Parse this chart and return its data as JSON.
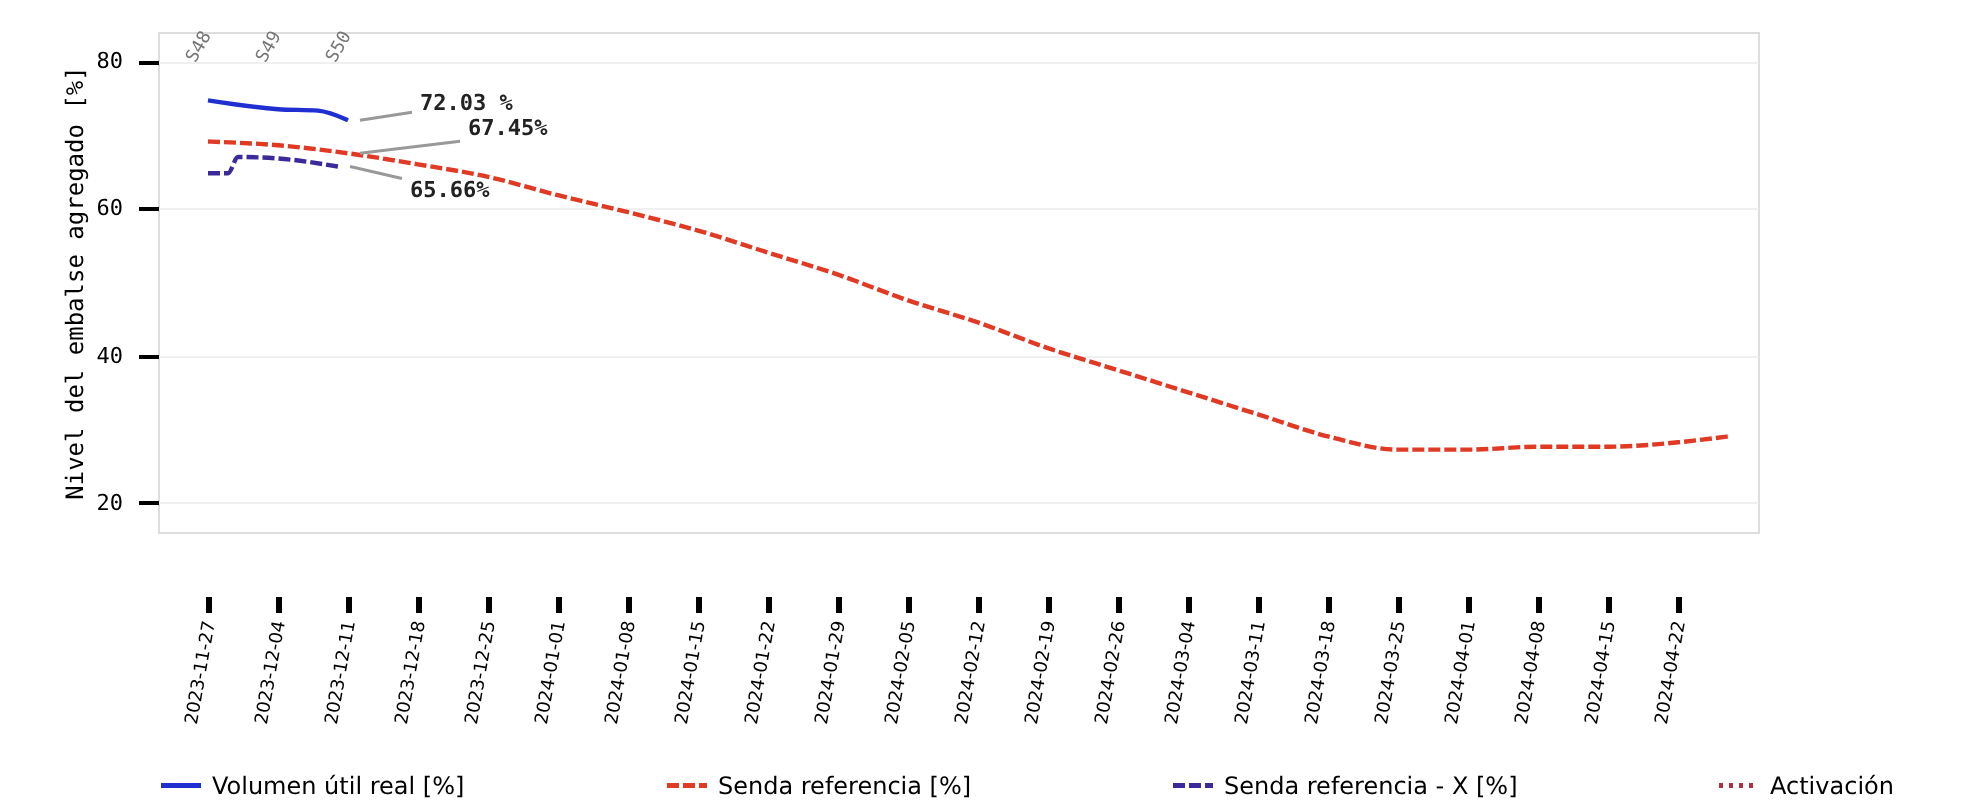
{
  "chart_data": {
    "type": "line",
    "ylabel": "Nivel del embalse agregado [%]",
    "xlim": [
      "2023-11-22",
      "2024-04-30"
    ],
    "xticks": [
      "2023-11-27",
      "2023-12-04",
      "2023-12-11",
      "2023-12-18",
      "2023-12-25",
      "2024-01-01",
      "2024-01-08",
      "2024-01-15",
      "2024-01-22",
      "2024-01-29",
      "2024-02-05",
      "2024-02-12",
      "2024-02-19",
      "2024-02-26",
      "2024-03-04",
      "2024-03-11",
      "2024-03-18",
      "2024-03-25",
      "2024-04-01",
      "2024-04-08",
      "2024-04-15",
      "2024-04-22"
    ],
    "ylim": [
      16,
      84
    ],
    "yticks": [
      20,
      40,
      60,
      80
    ],
    "grid": "y",
    "legend": "bottom",
    "series": [
      {
        "name": "Volumen útil real [%]",
        "color": "#1f2fd0",
        "line_style": "solid",
        "x": [
          "2023-11-27",
          "2023-12-04",
          "2023-12-08",
          "2023-12-11"
        ],
        "values": [
          74.7,
          73.5,
          73.3,
          72.0
        ]
      },
      {
        "name": "Senda referencia [%]",
        "color": "#e03a24",
        "line_style": "dashed",
        "x": [
          "2023-11-27",
          "2023-12-04",
          "2023-12-11",
          "2023-12-18",
          "2023-12-25",
          "2024-01-01",
          "2024-01-08",
          "2024-01-15",
          "2024-01-22",
          "2024-01-29",
          "2024-02-05",
          "2024-02-12",
          "2024-02-19",
          "2024-02-26",
          "2024-03-04",
          "2024-03-11",
          "2024-03-18",
          "2024-03-25",
          "2024-04-01",
          "2024-04-08",
          "2024-04-15",
          "2024-04-22",
          "2024-04-27"
        ],
        "values": [
          69.1,
          68.6,
          67.5,
          66.0,
          64.3,
          61.8,
          59.5,
          57,
          54,
          51,
          47.5,
          44.5,
          41,
          38,
          35,
          32,
          29,
          27.2,
          27.2,
          27.6,
          27.6,
          28.2,
          29
        ]
      },
      {
        "name": "Senda referencia - X [%]",
        "color": "#3a2a9a",
        "line_style": "dashed",
        "x": [
          "2023-11-27",
          "2023-11-29",
          "2023-11-30",
          "2023-12-04",
          "2023-12-10"
        ],
        "values": [
          64.8,
          64.8,
          67.0,
          66.8,
          65.7
        ]
      },
      {
        "name": "Activación",
        "color": "#b03040",
        "line_style": "dotted"
      }
    ],
    "annotations": [
      "S48",
      "S49",
      "S50",
      {
        "text": "72.03 %",
        "x": "2023-12-11",
        "y": 72.0
      },
      {
        "text": "67.45%",
        "x": "2023-12-11",
        "y": 67.5
      },
      {
        "text": "65.66%",
        "x": "2023-12-10",
        "y": 65.7
      }
    ]
  }
}
